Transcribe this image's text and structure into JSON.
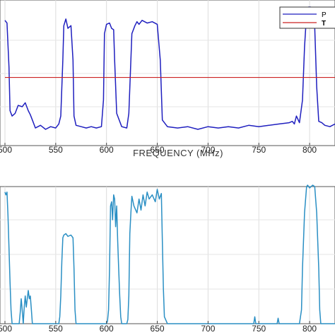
{
  "chart_data": [
    {
      "type": "line",
      "title": "",
      "xlabel": "FREQUENCY (MHz)",
      "ylabel": "",
      "xlim": [
        500,
        825
      ],
      "xticks": [
        500,
        550,
        600,
        650,
        700,
        750,
        800
      ],
      "xtick_labels": [
        "500",
        "550",
        "600",
        "650",
        "700",
        "750",
        "800"
      ],
      "ylim": [
        0,
        1
      ],
      "grid": true,
      "legend": {
        "placement": "top-right",
        "entries": [
          "P",
          "T"
        ]
      },
      "series": [
        {
          "name": "P",
          "color": "#1f1fbf",
          "x": [
            500,
            502,
            504,
            505,
            507,
            510,
            513,
            517,
            520,
            523,
            525,
            527,
            530,
            535,
            540,
            545,
            550,
            553,
            555,
            557,
            558,
            560,
            562,
            565,
            567,
            568,
            570,
            575,
            580,
            585,
            590,
            595,
            597,
            598,
            600,
            603,
            605,
            607,
            608,
            610,
            615,
            620,
            622,
            625,
            628,
            630,
            632,
            635,
            640,
            645,
            650,
            653,
            655,
            660,
            670,
            680,
            690,
            700,
            710,
            720,
            730,
            740,
            750,
            760,
            770,
            780,
            783,
            785,
            787,
            790,
            793,
            795,
            797,
            799,
            801,
            803,
            805,
            807,
            809,
            812,
            815,
            820,
            825
          ],
          "y": [
            0.9,
            0.88,
            0.55,
            0.22,
            0.18,
            0.2,
            0.26,
            0.25,
            0.28,
            0.22,
            0.19,
            0.15,
            0.09,
            0.11,
            0.08,
            0.1,
            0.09,
            0.12,
            0.18,
            0.6,
            0.86,
            0.91,
            0.84,
            0.86,
            0.6,
            0.18,
            0.11,
            0.1,
            0.09,
            0.1,
            0.09,
            0.1,
            0.3,
            0.8,
            0.87,
            0.88,
            0.84,
            0.83,
            0.6,
            0.2,
            0.1,
            0.09,
            0.2,
            0.8,
            0.86,
            0.89,
            0.87,
            0.9,
            0.88,
            0.89,
            0.87,
            0.6,
            0.15,
            0.1,
            0.09,
            0.1,
            0.08,
            0.1,
            0.09,
            0.1,
            0.09,
            0.11,
            0.1,
            0.11,
            0.12,
            0.13,
            0.14,
            0.12,
            0.18,
            0.13,
            0.3,
            0.7,
            0.95,
            1.0,
            1.0,
            0.98,
            0.85,
            0.4,
            0.14,
            0.13,
            0.11,
            0.1,
            0.12
          ]
        },
        {
          "name": "T",
          "color": "#cc2222",
          "x": [
            500,
            825
          ],
          "y": [
            0.47,
            0.47
          ]
        }
      ]
    },
    {
      "type": "line",
      "title": "",
      "xlabel": "",
      "ylabel": "",
      "xlim": [
        500,
        825
      ],
      "xticks": [
        500,
        550,
        600,
        650,
        700,
        750,
        800
      ],
      "xtick_labels": [
        "500",
        "550",
        "600",
        "650",
        "700",
        "750",
        "800"
      ],
      "ylim": [
        0,
        1
      ],
      "grid": true,
      "series": [
        {
          "name": "",
          "color": "#2a8fc4",
          "x": [
            500,
            501,
            502,
            503,
            504,
            505,
            506,
            507,
            508,
            509,
            510,
            511,
            512,
            513,
            514,
            515,
            516,
            517,
            518,
            519,
            520,
            521,
            522,
            523,
            524,
            525,
            526,
            527,
            530,
            545,
            550,
            553,
            554,
            555,
            556,
            557,
            558,
            560,
            562,
            565,
            567,
            568,
            569,
            570,
            571,
            572,
            580,
            595,
            600,
            601,
            602,
            603,
            604,
            605,
            606,
            607,
            608,
            609,
            610,
            611,
            612,
            613,
            614,
            615,
            618,
            620,
            621,
            622,
            623,
            624,
            625,
            627,
            630,
            632,
            634,
            636,
            638,
            640,
            642,
            645,
            648,
            650,
            652,
            654,
            655,
            656,
            657,
            660,
            670,
            680,
            690,
            700,
            710,
            720,
            730,
            740,
            745,
            746,
            747,
            760,
            768,
            769,
            770,
            780,
            790,
            792,
            793,
            795,
            797,
            798,
            800,
            803,
            805,
            807,
            809,
            810,
            811,
            815,
            825
          ],
          "y": [
            0.95,
            0.93,
            0.95,
            0.78,
            0.55,
            0.3,
            0.1,
            0.0,
            0.0,
            0.0,
            0.0,
            0.0,
            0.0,
            0.0,
            0.0,
            0.08,
            0.18,
            0.1,
            0.0,
            0.12,
            0.2,
            0.12,
            0.18,
            0.24,
            0.18,
            0.2,
            0.1,
            0.0,
            0.0,
            0.0,
            0.0,
            0.0,
            0.05,
            0.2,
            0.45,
            0.62,
            0.64,
            0.65,
            0.63,
            0.64,
            0.62,
            0.4,
            0.1,
            0.0,
            0.0,
            0.0,
            0.0,
            0.0,
            0.0,
            0.02,
            0.1,
            0.4,
            0.85,
            0.88,
            0.75,
            0.93,
            0.9,
            0.7,
            0.85,
            0.6,
            0.4,
            0.2,
            0.05,
            0.0,
            0.0,
            0.0,
            0.03,
            0.2,
            0.65,
            0.8,
            0.92,
            0.85,
            0.8,
            0.9,
            0.82,
            0.93,
            0.85,
            0.95,
            0.9,
            0.93,
            0.88,
            0.97,
            0.9,
            0.94,
            0.6,
            0.25,
            0.05,
            0.0,
            0.0,
            0.0,
            0.0,
            0.0,
            0.0,
            0.0,
            0.0,
            0.0,
            0.0,
            0.05,
            0.0,
            0.0,
            0.0,
            0.04,
            0.0,
            0.0,
            0.0,
            0.1,
            0.4,
            0.8,
            0.99,
            1.0,
            0.98,
            1.0,
            0.99,
            0.8,
            0.4,
            0.1,
            0.0,
            0.0,
            0.0
          ]
        }
      ]
    }
  ]
}
